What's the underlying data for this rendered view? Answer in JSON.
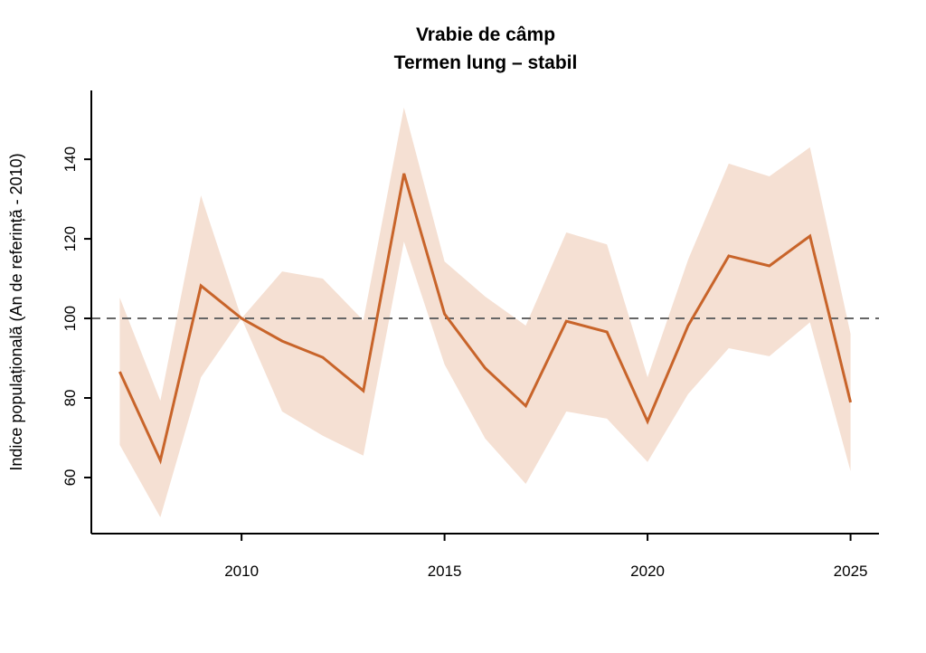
{
  "chart_data": {
    "type": "line",
    "title": "Vrabie de câmp",
    "subtitle": "Termen lung – stabil",
    "xlabel": "",
    "ylabel": "Indice populațională (An de referință - 2010)",
    "x": [
      2007,
      2008,
      2009,
      2010,
      2011,
      2012,
      2013,
      2014,
      2015,
      2016,
      2017,
      2018,
      2019,
      2020,
      2021,
      2022,
      2023,
      2024,
      2025
    ],
    "series": [
      {
        "name": "Indice",
        "color": "#C8642A",
        "values": [
          86.6,
          64.3,
          108.2,
          100,
          94.3,
          90.2,
          81.8,
          136.4,
          101.1,
          87.5,
          78.0,
          99.3,
          96.6,
          74.1,
          98.2,
          115.7,
          113.2,
          120.7,
          78.9
        ]
      }
    ],
    "band": {
      "color": "#F5E0D3",
      "upper": [
        105.2,
        79.3,
        130.9,
        100,
        111.8,
        110.0,
        99.5,
        153.0,
        114.3,
        105.5,
        98.2,
        121.6,
        118.6,
        85.2,
        114.8,
        138.9,
        135.7,
        143.0,
        96.1
      ],
      "lower": [
        68.2,
        50.0,
        85.2,
        100,
        76.6,
        70.5,
        65.5,
        119.3,
        88.4,
        69.8,
        58.4,
        76.6,
        74.8,
        63.9,
        81.0,
        92.5,
        90.5,
        99.0,
        61.6
      ]
    },
    "reference_line": 100,
    "xticks": [
      2010,
      2015,
      2020,
      2025
    ],
    "xtick_labels": [
      "2010",
      "2015",
      "2020",
      "2025"
    ],
    "yticks": [
      60,
      80,
      100,
      120,
      140
    ],
    "ytick_labels": [
      "60",
      "80",
      "100",
      "120",
      "140"
    ],
    "xlim": [
      2006.3,
      2025.7
    ],
    "ylim": [
      45.9,
      157.3
    ],
    "grid": false
  }
}
